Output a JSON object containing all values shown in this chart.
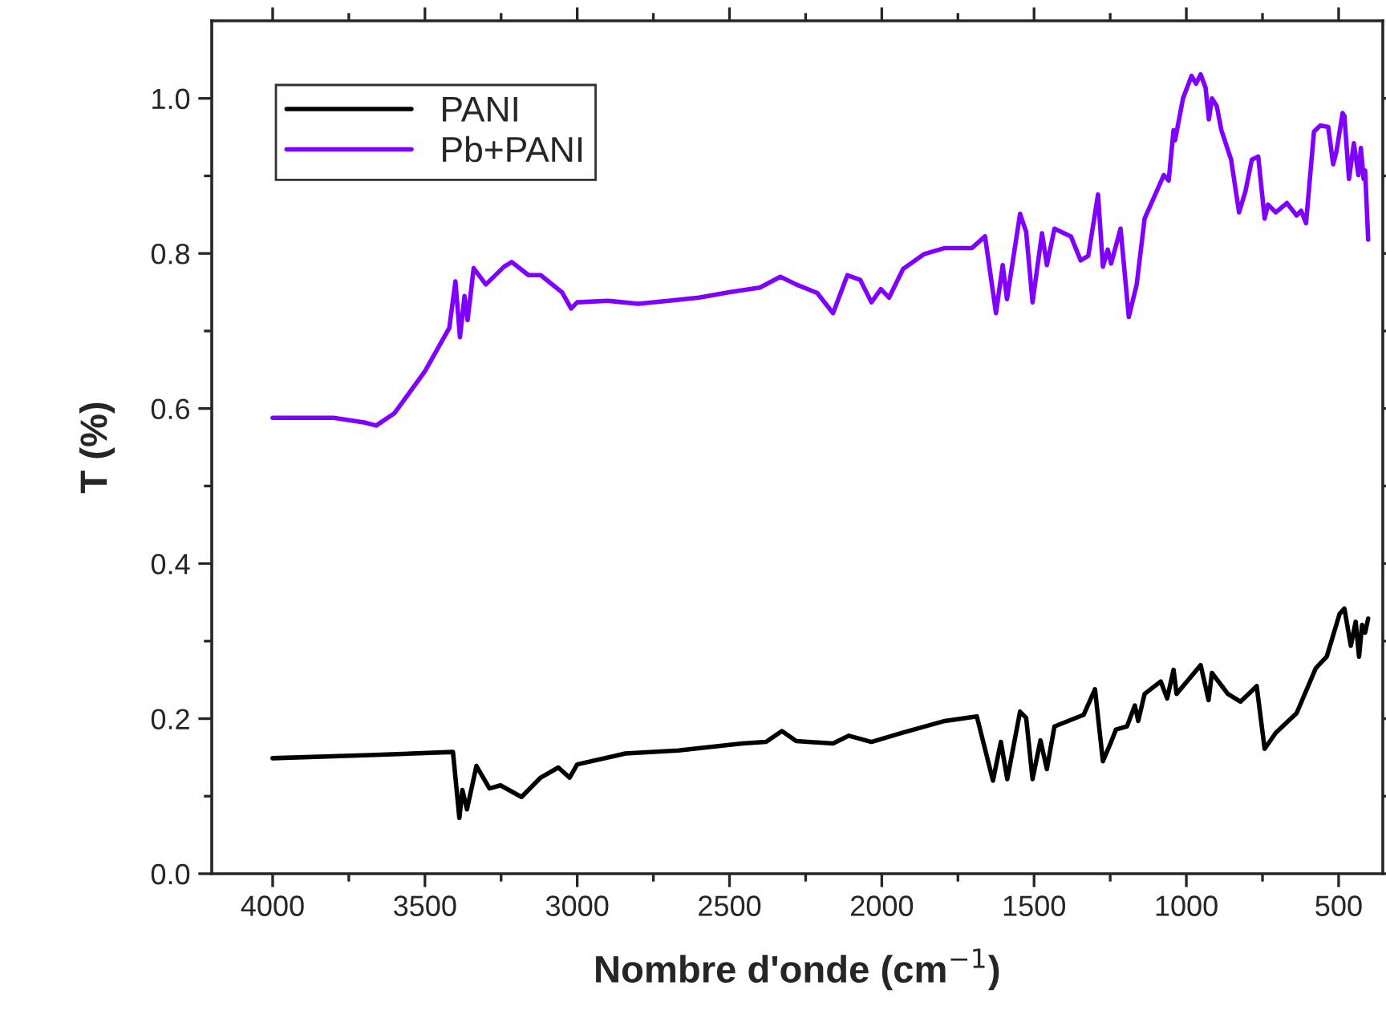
{
  "chart_data": {
    "type": "line",
    "xlabel": "Nombre d'onde (cm$^{−1}$)",
    "ylabel": "T (%)",
    "xlim": [
      4200,
      355
    ],
    "xticks": [
      4000,
      3500,
      3000,
      2500,
      2000,
      1500,
      1000,
      500
    ],
    "ylim": [
      0,
      1.1
    ],
    "yticks": [
      {
        "value": 0,
        "label": "0.0"
      },
      0.2,
      0.4,
      0.6,
      0.8,
      {
        "value": 1.0,
        "label": "1.0"
      }
    ],
    "legend": "top left",
    "grid": false,
    "marker": "none",
    "line_style": "solid",
    "series": [
      {
        "name": "PANI",
        "color": "#000000",
        "x": [
          4000,
          3680,
          3408,
          3387,
          3377,
          3362,
          3331,
          3288,
          3252,
          3183,
          3120,
          3062,
          3025,
          3000,
          2842,
          2668,
          2458,
          2380,
          2328,
          2281,
          2160,
          2108,
          2034,
          1930,
          1793,
          1688,
          1635,
          1609,
          1588,
          1546,
          1526,
          1505,
          1479,
          1458,
          1433,
          1337,
          1300,
          1274,
          1247,
          1231,
          1195,
          1169,
          1158,
          1137,
          1084,
          1063,
          1042,
          1032,
          953,
          927,
          916,
          864,
          822,
          769,
          743,
          706,
          638,
          575,
          539,
          497,
          481,
          460,
          444,
          433,
          423,
          413,
          403
        ],
        "values": [
          0.149,
          0.153,
          0.157,
          0.072,
          0.108,
          0.083,
          0.139,
          0.11,
          0.114,
          0.099,
          0.124,
          0.137,
          0.124,
          0.141,
          0.155,
          0.159,
          0.168,
          0.17,
          0.184,
          0.171,
          0.168,
          0.178,
          0.17,
          0.182,
          0.197,
          0.203,
          0.12,
          0.17,
          0.122,
          0.209,
          0.201,
          0.122,
          0.172,
          0.135,
          0.19,
          0.205,
          0.238,
          0.145,
          0.17,
          0.186,
          0.19,
          0.217,
          0.197,
          0.232,
          0.248,
          0.226,
          0.263,
          0.232,
          0.269,
          0.224,
          0.259,
          0.232,
          0.222,
          0.242,
          0.161,
          0.182,
          0.207,
          0.265,
          0.28,
          0.335,
          0.342,
          0.294,
          0.325,
          0.28,
          0.321,
          0.311,
          0.329
        ]
      },
      {
        "name": "Pb+PANI",
        "color": "#7f00ff",
        "x": [
          4000,
          3800,
          3700,
          3660,
          3600,
          3500,
          3420,
          3400,
          3385,
          3370,
          3360,
          3340,
          3300,
          3240,
          3215,
          3160,
          3120,
          3050,
          3020,
          3000,
          2900,
          2800,
          2700,
          2600,
          2500,
          2400,
          2333,
          2281,
          2212,
          2160,
          2113,
          2071,
          2034,
          2003,
          1976,
          1930,
          1862,
          1793,
          1704,
          1661,
          1625,
          1603,
          1589,
          1546,
          1526,
          1505,
          1474,
          1458,
          1433,
          1379,
          1347,
          1322,
          1290,
          1274,
          1258,
          1247,
          1216,
          1189,
          1163,
          1137,
          1074,
          1058,
          1042,
          1037,
          1011,
          983,
          968,
          953,
          937,
          926,
          916,
          900,
          885,
          853,
          827,
          806,
          785,
          764,
          743,
          732,
          706,
          670,
          638,
          623,
          607,
          581,
          560,
          534,
          518,
          507,
          487,
          481,
          466,
          450,
          435,
          427,
          418,
          413,
          403
        ],
        "values": [
          0.588,
          0.588,
          0.582,
          0.578,
          0.594,
          0.648,
          0.704,
          0.764,
          0.692,
          0.745,
          0.714,
          0.781,
          0.76,
          0.783,
          0.789,
          0.772,
          0.772,
          0.75,
          0.729,
          0.737,
          0.739,
          0.735,
          0.739,
          0.743,
          0.75,
          0.756,
          0.77,
          0.76,
          0.749,
          0.723,
          0.772,
          0.766,
          0.737,
          0.754,
          0.743,
          0.78,
          0.799,
          0.807,
          0.807,
          0.822,
          0.723,
          0.785,
          0.741,
          0.851,
          0.828,
          0.737,
          0.826,
          0.785,
          0.832,
          0.822,
          0.791,
          0.797,
          0.876,
          0.783,
          0.805,
          0.787,
          0.832,
          0.718,
          0.76,
          0.845,
          0.901,
          0.894,
          0.959,
          0.946,
          1.0,
          1.029,
          1.019,
          1.031,
          1.014,
          0.973,
          1.0,
          0.99,
          0.959,
          0.921,
          0.853,
          0.88,
          0.921,
          0.925,
          0.845,
          0.863,
          0.853,
          0.865,
          0.849,
          0.855,
          0.839,
          0.957,
          0.965,
          0.963,
          0.915,
          0.932,
          0.981,
          0.977,
          0.896,
          0.942,
          0.901,
          0.936,
          0.896,
          0.907,
          0.818
        ]
      }
    ]
  }
}
